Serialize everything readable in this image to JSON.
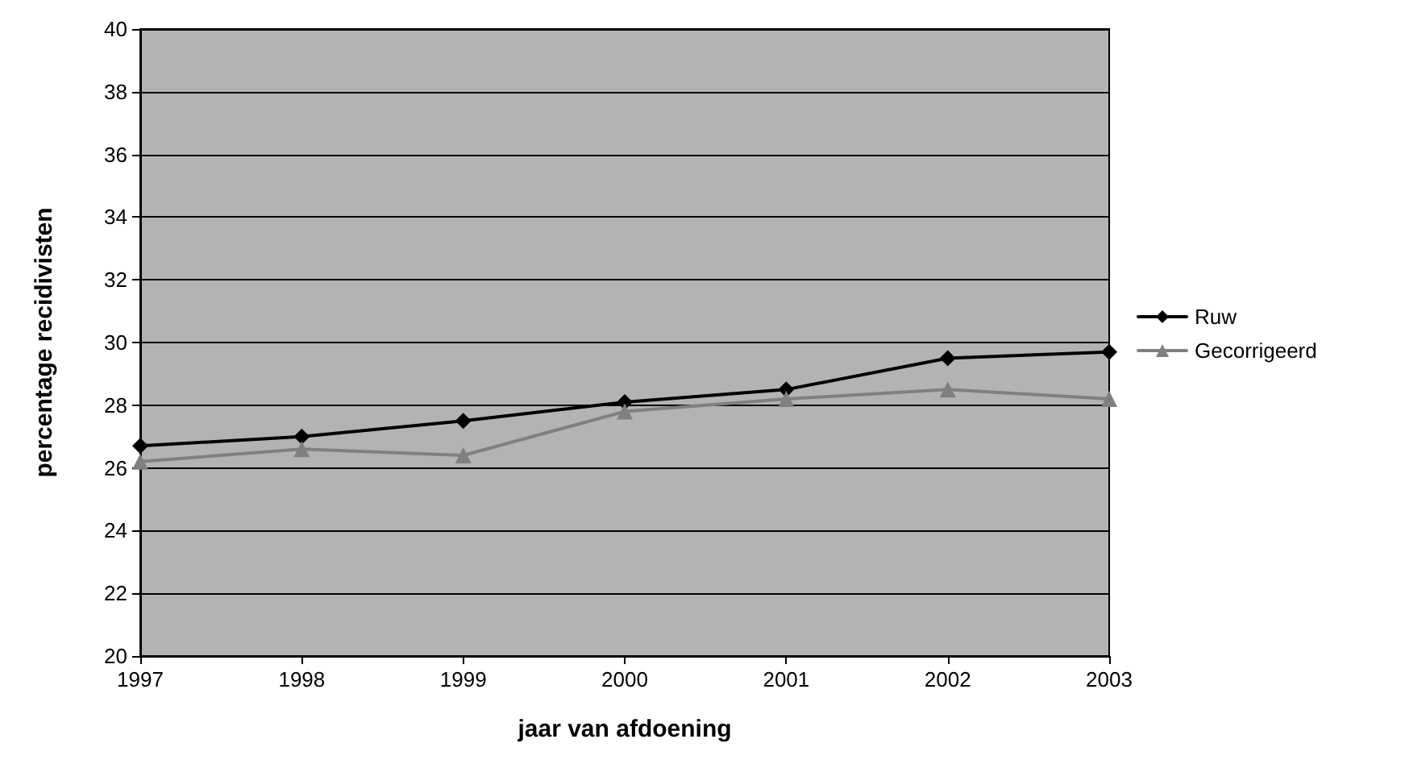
{
  "chart_data": {
    "type": "line",
    "xlabel": "jaar van afdoening",
    "ylabel": "percentage recidivisten",
    "categories": [
      "1997",
      "1998",
      "1999",
      "2000",
      "2001",
      "2002",
      "2003"
    ],
    "series": [
      {
        "name": "Ruw",
        "color": "#000000",
        "marker": "diamond",
        "values": [
          26.7,
          27.0,
          27.5,
          28.1,
          28.5,
          29.5,
          29.7
        ]
      },
      {
        "name": "Gecorrigeerd",
        "color": "#808080",
        "marker": "triangle",
        "values": [
          26.2,
          26.6,
          26.4,
          27.8,
          28.2,
          28.5,
          28.2
        ]
      }
    ],
    "ylim": [
      20,
      40
    ],
    "yticks": [
      20,
      22,
      24,
      26,
      28,
      30,
      32,
      34,
      36,
      38,
      40
    ],
    "grid": "y",
    "legend": "right"
  }
}
